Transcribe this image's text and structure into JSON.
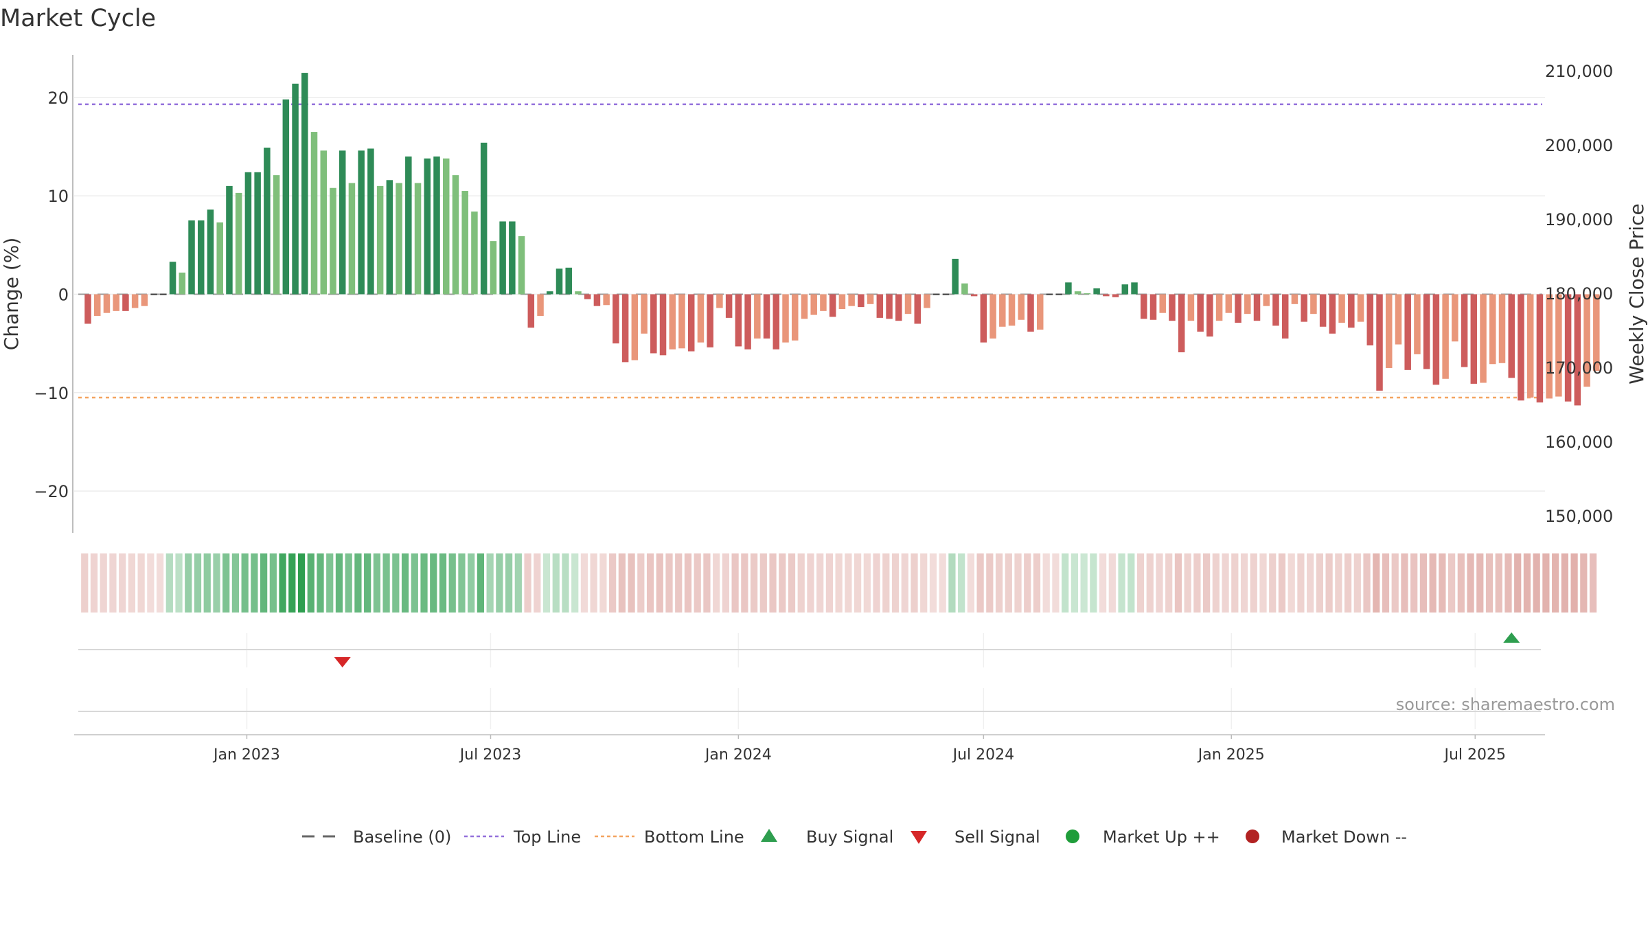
{
  "chart_data": {
    "type": "bar",
    "title": "Market Cycle",
    "ylabel": "Change (%)",
    "ylabel_right": "Weekly Close Price",
    "ylim": [
      -24.5,
      24.5
    ],
    "yticks": [
      20,
      10,
      0,
      -10,
      -20
    ],
    "ytick_labels": [
      "20",
      "10",
      "0",
      "−10",
      "−20"
    ],
    "y2lim": [
      146800,
      213200
    ],
    "y2ticks": [
      150000,
      160000,
      170000,
      180000,
      190000,
      200000,
      210000
    ],
    "y2tick_labels": [
      "150,000",
      "160,000",
      "170,000",
      "180,000",
      "190,000",
      "200,000",
      "210,000"
    ],
    "x_start": "2022-09-05",
    "x_step_days": 7,
    "xticks": [
      "2023-01-01",
      "2023-07-01",
      "2024-01-01",
      "2024-07-01",
      "2025-01-01",
      "2025-07-01"
    ],
    "xtick_labels": [
      "Jan 2023",
      "Jul 2023",
      "Jan 2024",
      "Jul 2024",
      "Jan 2025",
      "Jul 2025"
    ],
    "reference_lines": {
      "baseline": 0,
      "top_line": 19.3,
      "bottom_line": -10.5
    },
    "values": [
      -3.0,
      -2.2,
      -1.9,
      -1.7,
      -1.7,
      -1.4,
      -1.2,
      0.0,
      0.0,
      3.3,
      2.2,
      7.5,
      7.5,
      8.6,
      7.3,
      11.0,
      10.3,
      12.4,
      12.4,
      14.9,
      12.1,
      19.8,
      21.4,
      22.5,
      16.5,
      14.6,
      10.8,
      14.6,
      11.3,
      14.6,
      14.8,
      11.0,
      11.6,
      11.3,
      14.0,
      11.3,
      13.8,
      14.0,
      13.8,
      12.1,
      10.5,
      8.4,
      15.4,
      5.4,
      7.4,
      7.4,
      5.9,
      -3.4,
      -2.2,
      0.3,
      2.6,
      2.7,
      0.3,
      -0.5,
      -1.2,
      -1.1,
      -5.0,
      -6.9,
      -6.7,
      -4.0,
      -6.0,
      -6.2,
      -5.6,
      -5.5,
      -5.8,
      -4.9,
      -5.4,
      -1.4,
      -2.4,
      -5.3,
      -5.6,
      -4.5,
      -4.5,
      -5.6,
      -4.9,
      -4.7,
      -2.5,
      -2.1,
      -1.7,
      -2.3,
      -1.5,
      -1.2,
      -1.3,
      -1.0,
      -2.4,
      -2.5,
      -2.7,
      -2.0,
      -3.0,
      -1.4,
      0.0,
      0.0,
      3.6,
      1.1,
      -0.2,
      -4.9,
      -4.5,
      -3.3,
      -3.2,
      -2.6,
      -3.8,
      -3.6,
      0.0,
      0.0,
      1.2,
      0.3,
      0.1,
      0.6,
      -0.2,
      -0.3,
      1.0,
      1.2,
      -2.5,
      -2.6,
      -1.9,
      -2.7,
      -5.9,
      -2.7,
      -3.8,
      -4.3,
      -2.7,
      -1.9,
      -2.9,
      -2.0,
      -2.7,
      -1.2,
      -3.2,
      -4.5,
      -1.0,
      -2.8,
      -2.0,
      -3.3,
      -4.0,
      -2.9,
      -3.4,
      -2.8,
      -5.2,
      -9.8,
      -7.5,
      -5.1,
      -7.7,
      -6.1,
      -7.6,
      -9.2,
      -8.6,
      -4.8,
      -7.4,
      -9.1,
      -9.0,
      -7.1,
      -7.0,
      -8.5,
      -10.8,
      -10.5,
      -11.0,
      -10.6,
      -10.4,
      -10.9,
      -11.3,
      -9.4,
      -7.8
    ],
    "buy_signals": [
      "2025-07-28"
    ],
    "sell_signals": [
      "2023-03-13"
    ],
    "strip_panel": "Market regime intensity (green = up, red = down)",
    "colors": {
      "up_strong": "#2e8b57",
      "up_light": "#7fbf7b",
      "down_strong": "#cd5c5c",
      "down_light": "#e9967a",
      "top_line": "#9370db",
      "bottom_line": "#f4a460",
      "baseline": "#555555",
      "buy": "#2e9e4f",
      "sell": "#d62728",
      "market_up": "#1f9d3a",
      "market_down": "#b22222"
    },
    "legend": [
      {
        "label": "Baseline (0)",
        "symbol": "dash-line",
        "color": "#666666"
      },
      {
        "label": "Top Line",
        "symbol": "dotted-line",
        "color": "#9370db"
      },
      {
        "label": "Bottom Line",
        "symbol": "dotted-line",
        "color": "#f4a460"
      },
      {
        "label": "Buy Signal",
        "symbol": "triangle-up",
        "color": "#2e9e4f"
      },
      {
        "label": "Sell Signal",
        "symbol": "triangle-down",
        "color": "#d62728"
      },
      {
        "label": "Market Up ++",
        "symbol": "circle",
        "color": "#1f9d3a"
      },
      {
        "label": "Market Down --",
        "symbol": "circle",
        "color": "#b22222"
      }
    ],
    "legend_placement": "bottom-center",
    "source": "source: sharemaestro.com",
    "grid": true
  }
}
